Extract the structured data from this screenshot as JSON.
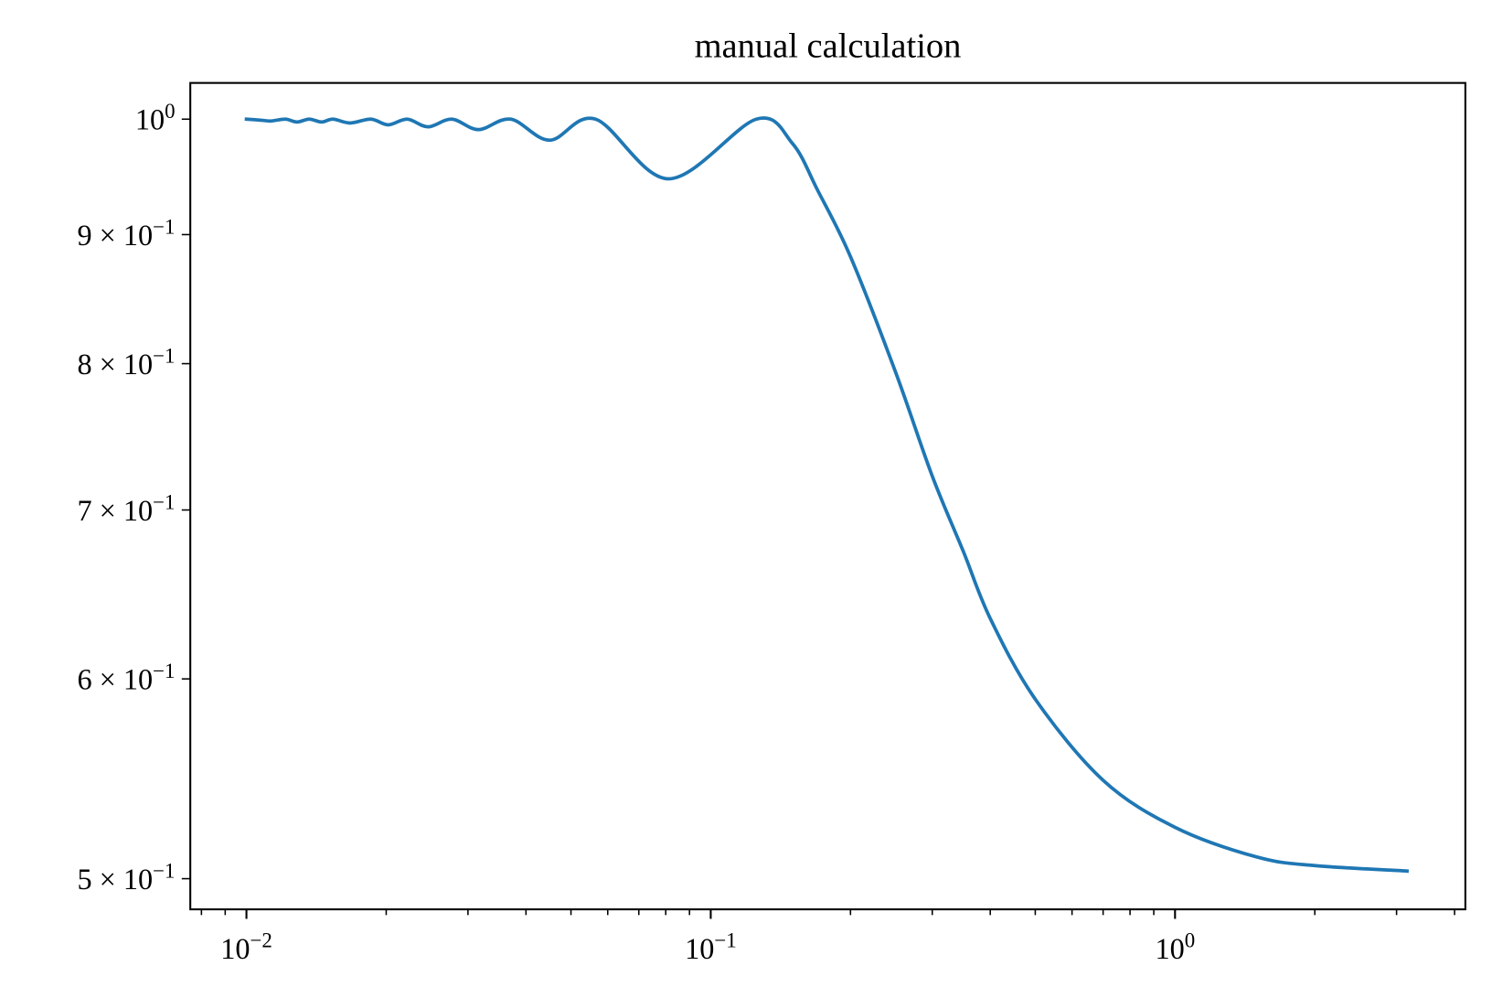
{
  "chart_data": {
    "type": "line",
    "title": "manual calculation",
    "xscale": "log",
    "yscale": "log",
    "xlim": [
      0.00757,
      4.22
    ],
    "ylim": [
      0.4862,
      1.0336
    ],
    "xticks": [
      {
        "value": 0.01,
        "label": "10^−2"
      },
      {
        "value": 0.1,
        "label": "10^−1"
      },
      {
        "value": 1,
        "label": "10^0"
      }
    ],
    "xminorticks": [
      0.008,
      0.009,
      0.02,
      0.03,
      0.04,
      0.05,
      0.06,
      0.07,
      0.08,
      0.09,
      0.2,
      0.3,
      0.4,
      0.5,
      0.6,
      0.7,
      0.8,
      0.9,
      2,
      3,
      4
    ],
    "yticks": [
      {
        "value": 0.5,
        "label": "5 × 10^−1"
      },
      {
        "value": 0.6,
        "label": "6 × 10^−1"
      },
      {
        "value": 0.7,
        "label": "7 × 10^−1"
      },
      {
        "value": 0.8,
        "label": "8 × 10^−1"
      },
      {
        "value": 0.9,
        "label": "9 × 10^−1"
      },
      {
        "value": 1,
        "label": "10^0"
      }
    ],
    "grid": false,
    "series": [
      {
        "color": "#1f77b4",
        "x": [
          0.01,
          0.01079,
          0.0113,
          0.01213,
          0.01285,
          0.01365,
          0.01452,
          0.01536,
          0.01673,
          0.01855,
          0.0202,
          0.0222,
          0.0246,
          0.0277,
          0.0316,
          0.0371,
          0.045,
          0.0565,
          0.0812,
          0.1254,
          0.15,
          0.17,
          0.2,
          0.25,
          0.3,
          0.35,
          0.4,
          0.5,
          0.7,
          1,
          1.5,
          2,
          3.16
        ],
        "values": [
          1.0,
          0.999,
          0.9983,
          1.0,
          0.9974,
          1.0,
          0.9974,
          1.0,
          0.9965,
          1.0,
          0.9948,
          1.0,
          0.993,
          1.0,
          0.9905,
          1.0,
          0.981,
          1.0,
          0.947,
          1.0,
          0.978,
          0.937,
          0.882,
          0.794,
          0.722,
          0.674,
          0.634,
          0.589,
          0.547,
          0.524,
          0.51,
          0.506,
          0.5035
        ]
      }
    ]
  }
}
